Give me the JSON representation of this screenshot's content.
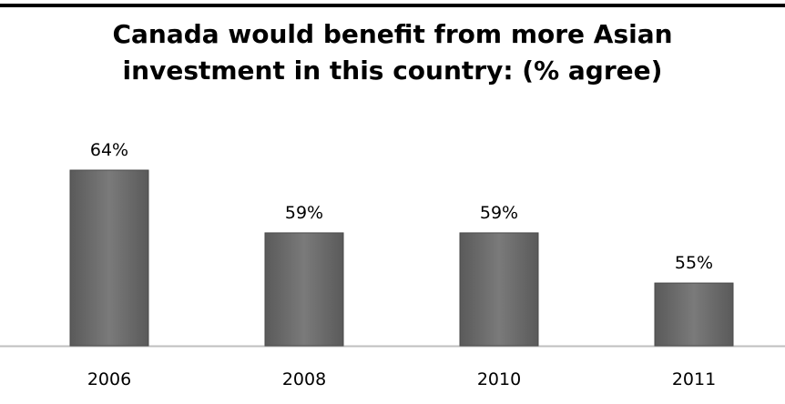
{
  "colors": {
    "bar_fill": "#6e6e6e",
    "bar_edge": "#4a4a4a",
    "axis": "#bfbfbf",
    "rule": "#000000"
  },
  "chart_data": {
    "type": "bar",
    "title": "Canada would benefit from more Asian investment in this country: (% agree)",
    "title_lines": [
      "Canada would benefit from more Asian",
      "investment in this country: (% agree)"
    ],
    "categories": [
      "2006",
      "2008",
      "2010",
      "2011"
    ],
    "values": [
      64,
      59,
      59,
      55
    ],
    "value_labels": [
      "64%",
      "59%",
      "59%",
      "55%"
    ],
    "xlabel": "",
    "ylabel": "",
    "ylim": [
      50,
      65
    ],
    "grid": false,
    "legend": "none"
  }
}
